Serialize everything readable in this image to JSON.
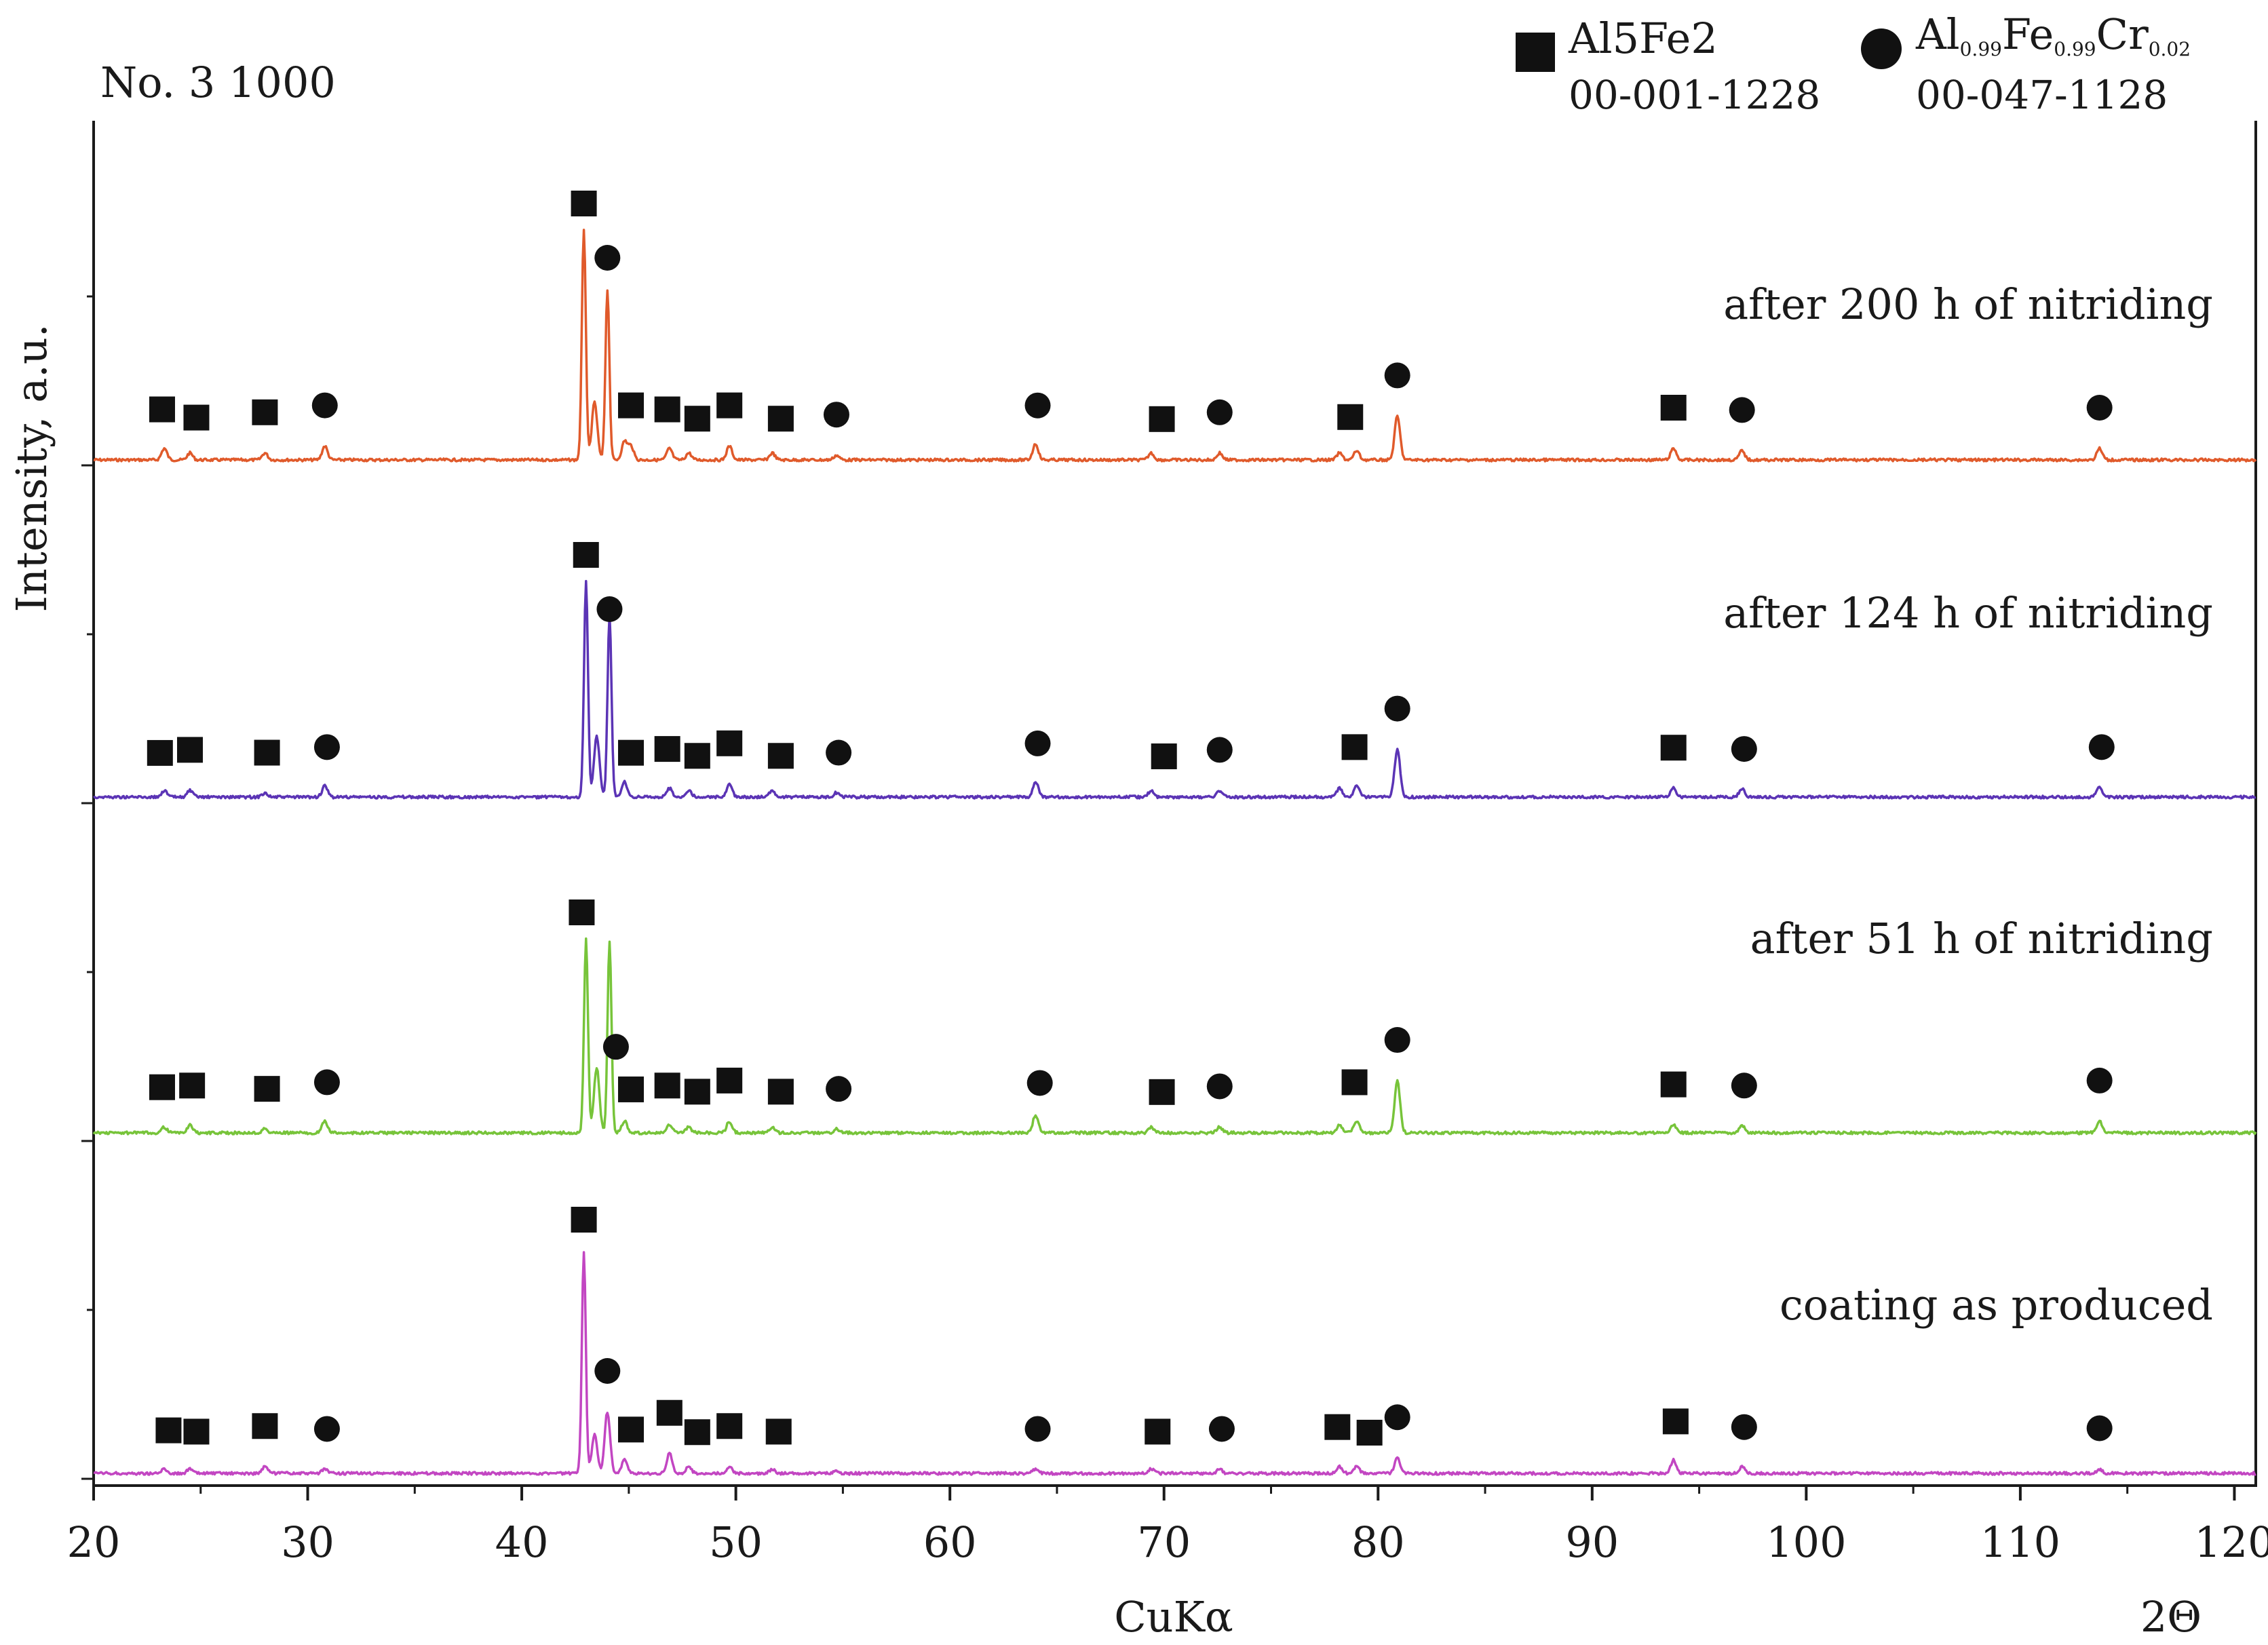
{
  "chart_data": {
    "type": "line",
    "title": "No. 3 1000",
    "xlabel": "CuKα",
    "xlabel_right": "2Θ",
    "ylabel": "Intensity, a.u.",
    "xlim": [
      20,
      121
    ],
    "xticks": [
      20,
      30,
      40,
      50,
      60,
      70,
      80,
      90,
      100,
      110,
      120
    ],
    "legend": [
      {
        "marker": "square",
        "phase": "Al5Fe2",
        "card": "00-001-1228"
      },
      {
        "marker": "circle",
        "phase_parts": [
          "Al",
          "0.99",
          "Fe",
          "0.99",
          "Cr",
          "0.02"
        ],
        "card": "00-047-1128"
      }
    ],
    "series": [
      {
        "name": "after 200 h of nitriding",
        "color": "#e05a2b",
        "peaks": [
          [
            23.3,
            0.05
          ],
          [
            24.5,
            0.03
          ],
          [
            28.0,
            0.03
          ],
          [
            30.8,
            0.06
          ],
          [
            42.9,
            1.0
          ],
          [
            43.4,
            0.25
          ],
          [
            44.0,
            0.74
          ],
          [
            44.8,
            0.08
          ],
          [
            45.1,
            0.06
          ],
          [
            46.9,
            0.05
          ],
          [
            47.8,
            0.03
          ],
          [
            49.7,
            0.06
          ],
          [
            51.7,
            0.03
          ],
          [
            54.7,
            0.02
          ],
          [
            64.0,
            0.07
          ],
          [
            69.4,
            0.03
          ],
          [
            72.6,
            0.03
          ],
          [
            78.2,
            0.03
          ],
          [
            79.0,
            0.04
          ],
          [
            80.9,
            0.19
          ],
          [
            93.8,
            0.05
          ],
          [
            97.0,
            0.04
          ],
          [
            113.7,
            0.05
          ]
        ],
        "markers": [
          {
            "x": 23.2,
            "shape": "square"
          },
          {
            "x": 24.8,
            "shape": "square"
          },
          {
            "x": 28.0,
            "shape": "square"
          },
          {
            "x": 30.8,
            "shape": "circle"
          },
          {
            "x": 42.9,
            "shape": "square"
          },
          {
            "x": 44.0,
            "shape": "circle"
          },
          {
            "x": 45.1,
            "shape": "square"
          },
          {
            "x": 46.8,
            "shape": "square"
          },
          {
            "x": 48.2,
            "shape": "square"
          },
          {
            "x": 49.7,
            "shape": "square"
          },
          {
            "x": 52.1,
            "shape": "square"
          },
          {
            "x": 54.7,
            "shape": "circle"
          },
          {
            "x": 64.1,
            "shape": "circle"
          },
          {
            "x": 69.9,
            "shape": "square"
          },
          {
            "x": 72.6,
            "shape": "circle"
          },
          {
            "x": 78.7,
            "shape": "square"
          },
          {
            "x": 80.9,
            "shape": "circle"
          },
          {
            "x": 93.8,
            "shape": "square"
          },
          {
            "x": 97.0,
            "shape": "circle"
          },
          {
            "x": 113.7,
            "shape": "circle"
          }
        ]
      },
      {
        "name": "after 124 h of nitriding",
        "color": "#5b34b5",
        "peaks": [
          [
            23.3,
            0.03
          ],
          [
            24.5,
            0.03
          ],
          [
            28.0,
            0.02
          ],
          [
            30.8,
            0.05
          ],
          [
            43.0,
            1.0
          ],
          [
            43.5,
            0.28
          ],
          [
            44.1,
            0.84
          ],
          [
            44.8,
            0.07
          ],
          [
            46.9,
            0.04
          ],
          [
            47.8,
            0.03
          ],
          [
            49.7,
            0.06
          ],
          [
            51.7,
            0.03
          ],
          [
            54.7,
            0.02
          ],
          [
            64.0,
            0.07
          ],
          [
            69.4,
            0.03
          ],
          [
            72.6,
            0.03
          ],
          [
            78.2,
            0.04
          ],
          [
            79.0,
            0.05
          ],
          [
            80.9,
            0.22
          ],
          [
            93.8,
            0.04
          ],
          [
            97.0,
            0.04
          ],
          [
            113.7,
            0.05
          ]
        ],
        "markers": [
          {
            "x": 23.1,
            "shape": "square"
          },
          {
            "x": 24.5,
            "shape": "square"
          },
          {
            "x": 28.1,
            "shape": "square"
          },
          {
            "x": 30.9,
            "shape": "circle"
          },
          {
            "x": 43.0,
            "shape": "square"
          },
          {
            "x": 44.1,
            "shape": "circle"
          },
          {
            "x": 45.1,
            "shape": "square"
          },
          {
            "x": 46.8,
            "shape": "square"
          },
          {
            "x": 48.2,
            "shape": "square"
          },
          {
            "x": 49.7,
            "shape": "square"
          },
          {
            "x": 52.1,
            "shape": "square"
          },
          {
            "x": 54.8,
            "shape": "circle"
          },
          {
            "x": 64.1,
            "shape": "circle"
          },
          {
            "x": 70.0,
            "shape": "square"
          },
          {
            "x": 72.6,
            "shape": "circle"
          },
          {
            "x": 78.9,
            "shape": "square"
          },
          {
            "x": 80.9,
            "shape": "circle"
          },
          {
            "x": 93.8,
            "shape": "square"
          },
          {
            "x": 97.1,
            "shape": "circle"
          },
          {
            "x": 113.8,
            "shape": "circle"
          }
        ]
      },
      {
        "name": "after 51 h of nitriding",
        "color": "#77c43a",
        "peaks": [
          [
            23.3,
            0.03
          ],
          [
            24.5,
            0.04
          ],
          [
            28.0,
            0.02
          ],
          [
            30.8,
            0.06
          ],
          [
            43.0,
            1.0
          ],
          [
            43.5,
            0.34
          ],
          [
            44.1,
            0.99
          ],
          [
            44.8,
            0.06
          ],
          [
            46.9,
            0.04
          ],
          [
            47.8,
            0.03
          ],
          [
            49.7,
            0.06
          ],
          [
            51.7,
            0.03
          ],
          [
            54.7,
            0.02
          ],
          [
            64.0,
            0.09
          ],
          [
            69.4,
            0.03
          ],
          [
            72.6,
            0.03
          ],
          [
            78.2,
            0.04
          ],
          [
            79.0,
            0.06
          ],
          [
            80.9,
            0.27
          ],
          [
            93.8,
            0.04
          ],
          [
            97.0,
            0.04
          ],
          [
            113.7,
            0.06
          ]
        ],
        "markers": [
          {
            "x": 23.2,
            "shape": "square"
          },
          {
            "x": 24.6,
            "shape": "square"
          },
          {
            "x": 28.1,
            "shape": "square"
          },
          {
            "x": 30.9,
            "shape": "circle"
          },
          {
            "x": 42.8,
            "shape": "square"
          },
          {
            "x": 44.4,
            "shape": "circle"
          },
          {
            "x": 45.1,
            "shape": "square"
          },
          {
            "x": 46.8,
            "shape": "square"
          },
          {
            "x": 48.2,
            "shape": "square"
          },
          {
            "x": 49.7,
            "shape": "square"
          },
          {
            "x": 52.1,
            "shape": "square"
          },
          {
            "x": 54.8,
            "shape": "circle"
          },
          {
            "x": 64.2,
            "shape": "circle"
          },
          {
            "x": 69.9,
            "shape": "square"
          },
          {
            "x": 72.6,
            "shape": "circle"
          },
          {
            "x": 78.9,
            "shape": "square"
          },
          {
            "x": 80.9,
            "shape": "circle"
          },
          {
            "x": 93.8,
            "shape": "square"
          },
          {
            "x": 97.1,
            "shape": "circle"
          },
          {
            "x": 113.7,
            "shape": "circle"
          }
        ]
      },
      {
        "name": "coating as produced",
        "color": "#c246c2",
        "peaks": [
          [
            23.3,
            0.02
          ],
          [
            24.5,
            0.02
          ],
          [
            28.0,
            0.03
          ],
          [
            30.8,
            0.02
          ],
          [
            42.9,
            1.0
          ],
          [
            43.4,
            0.18
          ],
          [
            44.0,
            0.28
          ],
          [
            44.8,
            0.06
          ],
          [
            46.9,
            0.09
          ],
          [
            47.8,
            0.03
          ],
          [
            49.7,
            0.03
          ],
          [
            51.7,
            0.02
          ],
          [
            54.7,
            0.01
          ],
          [
            64.0,
            0.02
          ],
          [
            69.4,
            0.02
          ],
          [
            72.6,
            0.02
          ],
          [
            78.2,
            0.03
          ],
          [
            79.0,
            0.03
          ],
          [
            80.9,
            0.07
          ],
          [
            93.8,
            0.06
          ],
          [
            97.0,
            0.03
          ],
          [
            113.7,
            0.02
          ]
        ],
        "markers": [
          {
            "x": 23.5,
            "shape": "square"
          },
          {
            "x": 24.8,
            "shape": "square"
          },
          {
            "x": 28.0,
            "shape": "square"
          },
          {
            "x": 30.9,
            "shape": "circle"
          },
          {
            "x": 42.9,
            "shape": "square"
          },
          {
            "x": 44.0,
            "shape": "circle"
          },
          {
            "x": 45.1,
            "shape": "square"
          },
          {
            "x": 46.9,
            "shape": "square"
          },
          {
            "x": 48.2,
            "shape": "square"
          },
          {
            "x": 49.7,
            "shape": "square"
          },
          {
            "x": 52.0,
            "shape": "square"
          },
          {
            "x": 64.1,
            "shape": "circle"
          },
          {
            "x": 69.7,
            "shape": "square"
          },
          {
            "x": 72.7,
            "shape": "circle"
          },
          {
            "x": 78.1,
            "shape": "square"
          },
          {
            "x": 79.6,
            "shape": "square"
          },
          {
            "x": 80.9,
            "shape": "circle"
          },
          {
            "x": 93.9,
            "shape": "square"
          },
          {
            "x": 97.1,
            "shape": "circle"
          },
          {
            "x": 113.7,
            "shape": "circle"
          }
        ]
      }
    ]
  }
}
